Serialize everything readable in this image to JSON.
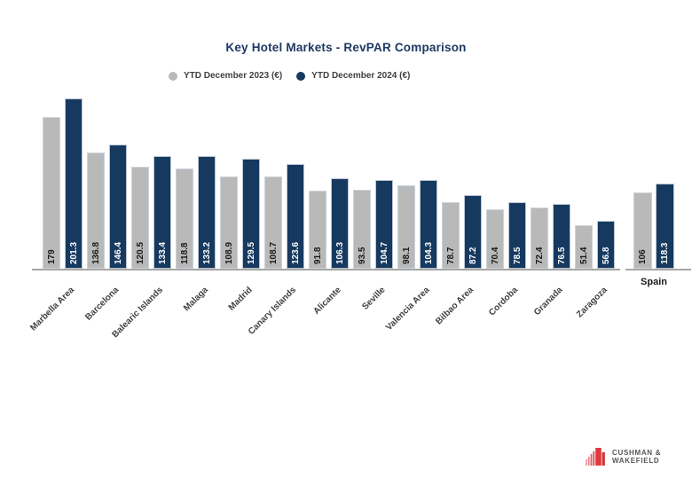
{
  "title": "Key Hotel Markets - RevPAR Comparison",
  "legend": {
    "items": [
      {
        "label": "YTD December 2023 (€)",
        "color": "#b9b9b9"
      },
      {
        "label": "YTD December 2024 (€)",
        "color": "#16395f"
      }
    ]
  },
  "chart_data": {
    "type": "bar",
    "title": "Key Hotel Markets - RevPAR Comparison",
    "categories": [
      "Marbella Area",
      "Barcelona",
      "Balearic Islands",
      "Malaga",
      "Madrid",
      "Canary Islands",
      "Alicante",
      "Seville",
      "Valencia Area",
      "Bilbao Area",
      "Cordoba",
      "Granada",
      "Zaragoza",
      "Spain"
    ],
    "series": [
      {
        "name": "YTD December 2023 (€)",
        "color": "#b9b9b9",
        "label_text_color": "#1a1a1a",
        "values": [
          179,
          136.8,
          120.5,
          118.8,
          108.9,
          108.7,
          91.8,
          93.5,
          98.1,
          78.7,
          70.4,
          72.4,
          51.4,
          106
        ]
      },
      {
        "name": "YTD December 2024 (€)",
        "color": "#16395f",
        "label_text_color": "#ffffff",
        "values": [
          201.3,
          146.4,
          133.4,
          133.2,
          129.5,
          123.6,
          106.3,
          104.7,
          104.3,
          87.2,
          78.5,
          76.5,
          56.8,
          118.3
        ]
      }
    ],
    "value_labels": true,
    "value_label_rotation": 90,
    "legend_position": "top",
    "grid": false,
    "separated_last_category": true,
    "ylim": [
      0,
      210
    ]
  },
  "colors": {
    "title": "#1f3864",
    "axis_line": "#a6a6a6",
    "category_text": "#404040"
  },
  "logo": {
    "name": "cushman-wakefield",
    "line1": "CUSHMAN &",
    "line2": "WAKEFIELD",
    "red": "#e0393d",
    "text_color": "#54565b"
  }
}
